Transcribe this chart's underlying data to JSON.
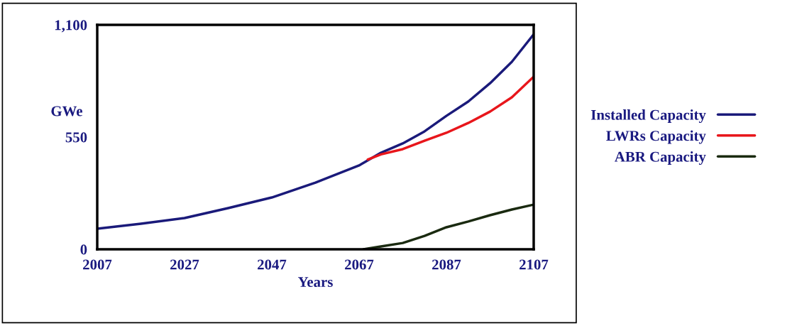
{
  "chart_data": {
    "type": "line",
    "xlabel": "Years",
    "ylabel": "GWe",
    "xlim": [
      2007,
      2107
    ],
    "xticks": [
      2007,
      2027,
      2047,
      2067,
      2087,
      2107
    ],
    "ylim": [
      0,
      1100
    ],
    "yticks": [
      0,
      550,
      {
        "value": 1100,
        "label": "1,100"
      }
    ],
    "legend": "right",
    "grid": false,
    "marker": "none",
    "line_style": "solid",
    "series": [
      {
        "name": "Installed Capacity",
        "color": "#1a1a7a",
        "x": [
          2007,
          2017,
          2027,
          2037,
          2047,
          2057,
          2067,
          2072,
          2077,
          2082,
          2087,
          2092,
          2097,
          2102,
          2107
        ],
        "values": [
          101,
          125,
          153,
          202,
          254,
          327,
          411,
          473,
          519,
          578,
          654,
          724,
          814,
          919,
          1054
        ]
      },
      {
        "name": "LWRs Capacity",
        "color": "#e8161b",
        "x": [
          2069,
          2072,
          2077,
          2082,
          2087,
          2092,
          2097,
          2102,
          2107
        ],
        "values": [
          440,
          465,
          491,
          532,
          571,
          619,
          675,
          745,
          846
        ]
      },
      {
        "name": "ABR Capacity",
        "color": "#1a2a10",
        "x": [
          2068,
          2072,
          2077,
          2082,
          2087,
          2092,
          2097,
          2102,
          2107
        ],
        "values": [
          0,
          14,
          31,
          66,
          108,
          136,
          167,
          195,
          219
        ]
      }
    ]
  }
}
